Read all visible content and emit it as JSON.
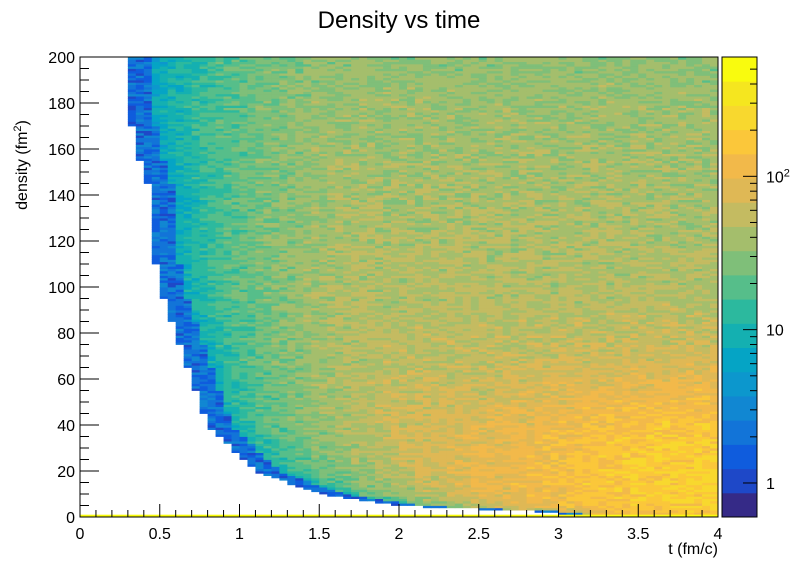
{
  "chart_data": {
    "type": "heatmap",
    "title": "Density vs time",
    "xlabel": "t (fm/c)",
    "ylabel_main": "density (fm",
    "ylabel_sup": "2",
    "ylabel_close": ")",
    "xlim": [
      0,
      4
    ],
    "ylim": [
      0,
      200
    ],
    "x_ticks": [
      "0",
      "0.5",
      "1",
      "1.5",
      "2",
      "2.5",
      "3",
      "3.5",
      "4"
    ],
    "y_ticks": [
      "0",
      "20",
      "40",
      "60",
      "80",
      "100",
      "120",
      "140",
      "160",
      "180",
      "200"
    ],
    "color_scale": "log",
    "z_range": [
      0.6,
      600
    ],
    "colorbar_ticks": [
      {
        "value": 1,
        "base": "1",
        "sup": ""
      },
      {
        "value": 10,
        "base": "10",
        "sup": ""
      },
      {
        "value": 100,
        "base": "10",
        "sup": "2"
      }
    ],
    "palette": [
      "#352a87",
      "#1e48c8",
      "#0f5cdd",
      "#1274d8",
      "#1187d2",
      "#0c97cd",
      "#05a4c5",
      "#14b0b1",
      "#2cb99e",
      "#56be8a",
      "#7fbf79",
      "#a4be6c",
      "#c4bb61",
      "#dfb855",
      "#f2b94a",
      "#fbc73a",
      "#f8d82e",
      "#f5e61f",
      "#f9fb0e"
    ],
    "structure": {
      "boundary_t_at_density": [
        [
          200,
          0.3
        ],
        [
          180,
          0.3
        ],
        [
          160,
          0.35
        ],
        [
          140,
          0.45
        ],
        [
          120,
          0.45
        ],
        [
          100,
          0.5
        ],
        [
          80,
          0.6
        ],
        [
          60,
          0.7
        ],
        [
          40,
          0.8
        ],
        [
          30,
          0.95
        ],
        [
          20,
          1.1
        ],
        [
          10,
          1.5
        ],
        [
          5,
          2.0
        ],
        [
          2,
          3.0
        ]
      ],
      "peak_region": {
        "t": 4,
        "density": 20,
        "count": 150
      },
      "bottom_row_count": 600
    }
  }
}
